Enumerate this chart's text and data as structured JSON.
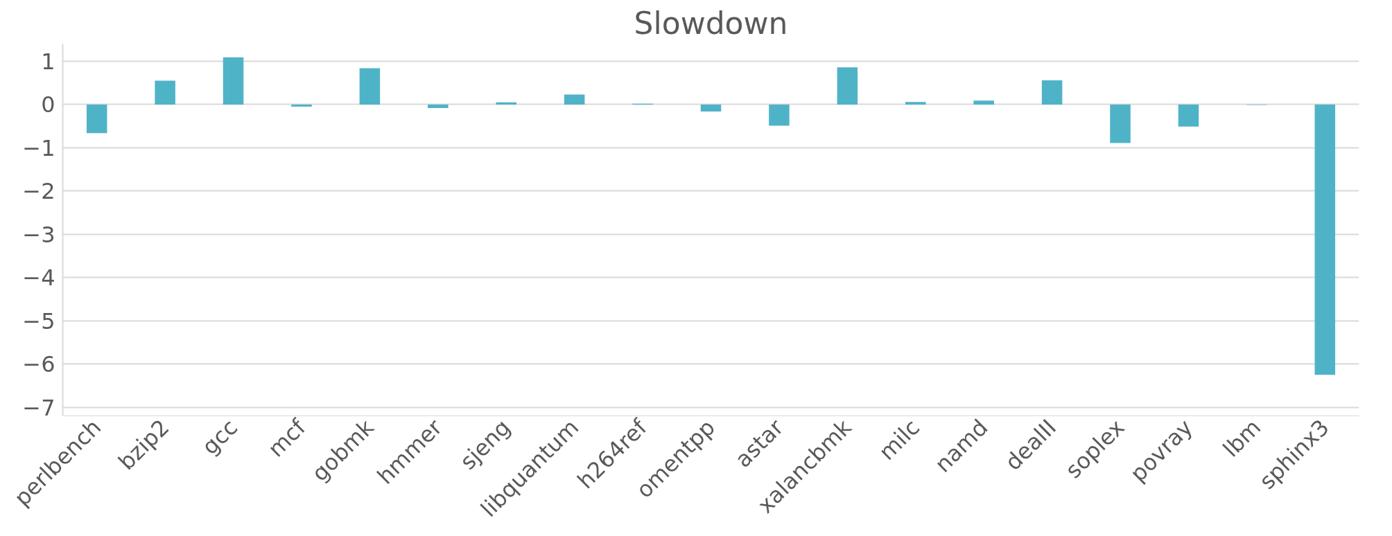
{
  "chart_data": {
    "type": "bar",
    "title": "Slowdown",
    "categories": [
      "perlbench",
      "bzip2",
      "gcc",
      "mcf",
      "gobmk",
      "hmmer",
      "sjeng",
      "libquantum",
      "h264ref",
      "omentpp",
      "astar",
      "xalancbmk",
      "milc",
      "namd",
      "dealII",
      "soplex",
      "povray",
      "lbm",
      "sphinx3"
    ],
    "values": [
      -0.66,
      0.55,
      1.09,
      -0.05,
      0.84,
      -0.08,
      0.05,
      0.23,
      0.02,
      -0.16,
      -0.49,
      0.86,
      0.06,
      0.09,
      0.56,
      -0.89,
      -0.51,
      -0.01,
      -6.25
    ],
    "color": "#4fb3c8",
    "ylim": [
      -7.2,
      1.4
    ],
    "yticks": [
      -7,
      -6,
      -5,
      -4,
      -3,
      -2,
      -1,
      0,
      1
    ],
    "grid": "y"
  }
}
